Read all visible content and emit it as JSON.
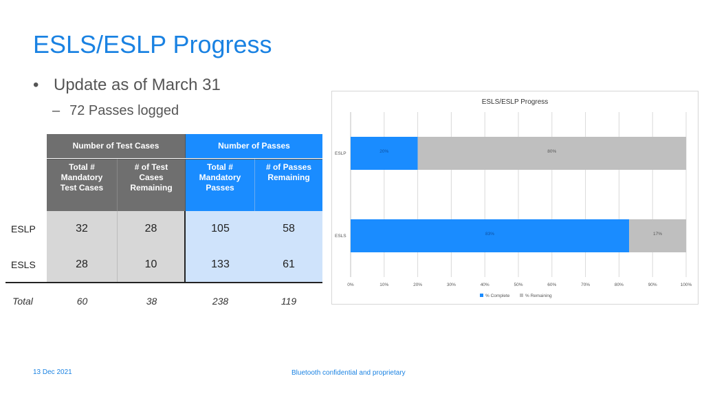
{
  "slide": {
    "title": "ESLS/ESLP Progress",
    "bullet_symbol": "•",
    "bullet": "Update as of March 31",
    "sub_dash": "–",
    "sub_bullet": "72 Passes logged",
    "footer_date": "13 Dec 2021",
    "footer_text": "Bluetooth confidential and proprietary"
  },
  "table": {
    "group_headers": [
      "Number of Test Cases",
      "Number of Passes"
    ],
    "headers": [
      "Total # Mandatory Test Cases",
      "# of Test Cases Remaining",
      "Total # Mandatory Passes",
      "# of Passes Remaining"
    ],
    "rows": [
      {
        "label": "ESLP",
        "values": [
          "32",
          "28",
          "105",
          "58"
        ]
      },
      {
        "label": "ESLS",
        "values": [
          "28",
          "10",
          "133",
          "61"
        ]
      }
    ],
    "total": {
      "label": "Total",
      "values": [
        "60",
        "38",
        "238",
        "119"
      ]
    }
  },
  "chart_data": {
    "type": "bar",
    "orientation": "horizontal",
    "stacked": true,
    "title": "ESLS/ESLP Progress",
    "categories": [
      "ESLP",
      "ESLS"
    ],
    "series": [
      {
        "name": "% Complete",
        "values": [
          20,
          83
        ],
        "labels": [
          "20%",
          "83%"
        ],
        "color": "#1a8cff"
      },
      {
        "name": "% Remaining",
        "values": [
          80,
          17
        ],
        "labels": [
          "80%",
          "17%"
        ],
        "color": "#bfbfbf"
      }
    ],
    "xlim": [
      0,
      100
    ],
    "xticks": [
      "0%",
      "10%",
      "20%",
      "30%",
      "40%",
      "50%",
      "60%",
      "70%",
      "80%",
      "90%",
      "100%"
    ],
    "grid": true,
    "legend": "bottom"
  },
  "colors": {
    "accent": "#1a82e2",
    "header_gray": "#6f6f6f",
    "header_blue": "#1a8cff"
  }
}
